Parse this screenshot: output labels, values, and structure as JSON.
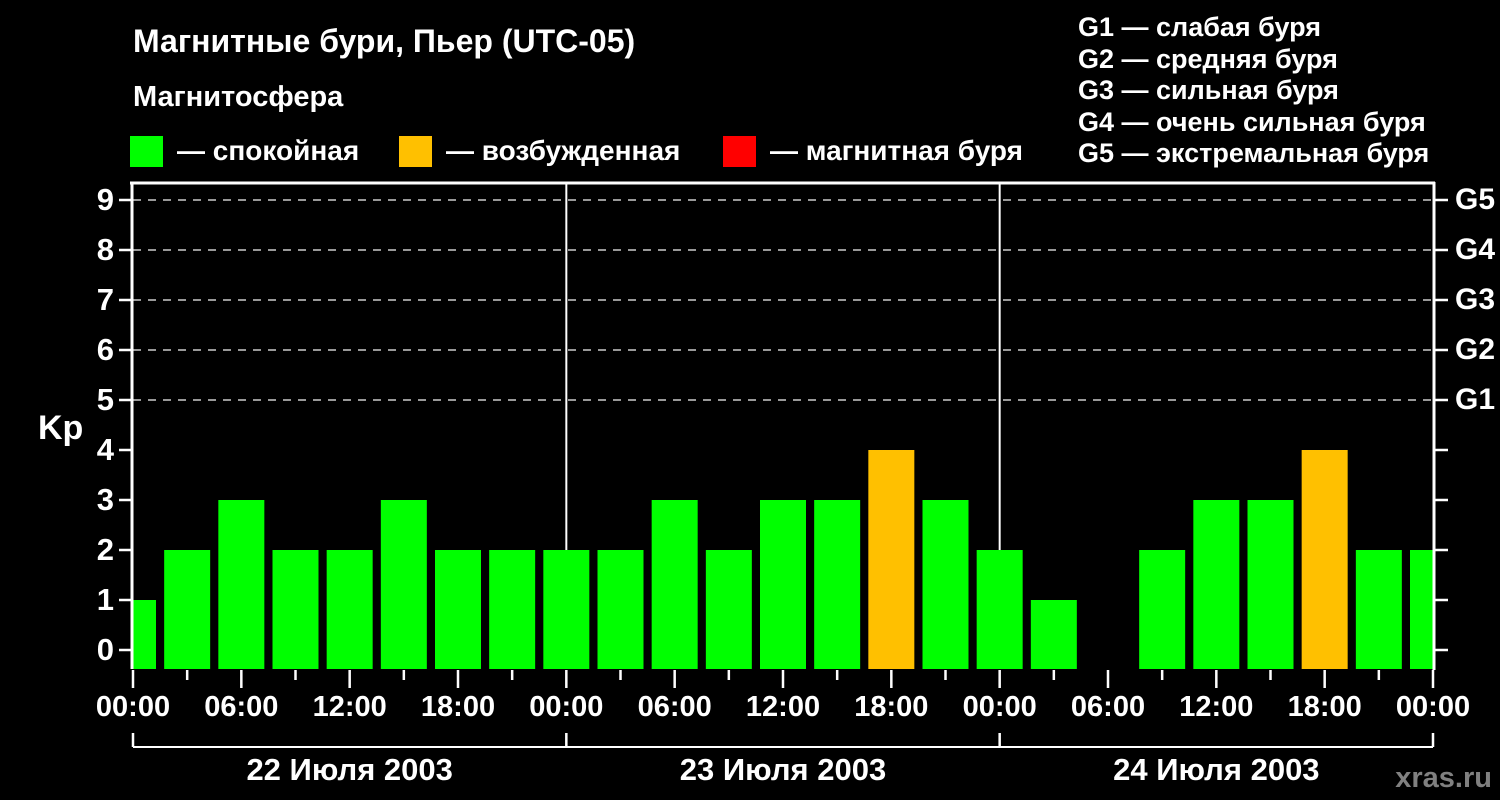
{
  "title": "Магнитные бури, Пьер (UTC-05)",
  "subtitle": "Магнитосфера",
  "legend": [
    {
      "key": "quiet",
      "color": "#00FF00",
      "label": "— спокойная"
    },
    {
      "key": "excited",
      "color": "#FFC000",
      "label": "— возбужденная"
    },
    {
      "key": "storm",
      "color": "#FF0000",
      "label": "— магнитная буря"
    }
  ],
  "storm_scale_legend": [
    "G1 — слабая буря",
    "G2 — средняя буря",
    "G3 — сильная буря",
    "G4 — очень сильная буря",
    "G5 — экстремальная буря"
  ],
  "watermark": "xras.ru",
  "chart_data": {
    "type": "bar",
    "ylabel": "Kp",
    "xlabel": "",
    "ylim": [
      0,
      9
    ],
    "y_ticks": [
      0,
      1,
      2,
      3,
      4,
      5,
      6,
      7,
      8,
      9
    ],
    "gridlines_at": [
      5,
      6,
      7,
      8,
      9
    ],
    "grid_on": true,
    "legend_position": "top",
    "right_axis_labels": {
      "5": "G1",
      "6": "G2",
      "7": "G3",
      "8": "G4",
      "9": "G5"
    },
    "x_hours_span": 72,
    "x_tick_step_hours": 3,
    "x_label_step_hours": 6,
    "x_labels": [
      "00:00",
      "06:00",
      "12:00",
      "18:00",
      "00:00",
      "06:00",
      "12:00",
      "18:00",
      "00:00",
      "06:00",
      "12:00",
      "18:00",
      "00:00"
    ],
    "day_boundaries_hours": [
      24,
      48
    ],
    "dates": [
      "22 Июля 2003",
      "23 Июля 2003",
      "24 Июля 2003"
    ],
    "bars": [
      {
        "hour": 0,
        "kp": 1,
        "state": "quiet"
      },
      {
        "hour": 3,
        "kp": 2,
        "state": "quiet"
      },
      {
        "hour": 6,
        "kp": 3,
        "state": "quiet"
      },
      {
        "hour": 9,
        "kp": 2,
        "state": "quiet"
      },
      {
        "hour": 12,
        "kp": 2,
        "state": "quiet"
      },
      {
        "hour": 15,
        "kp": 3,
        "state": "quiet"
      },
      {
        "hour": 18,
        "kp": 2,
        "state": "quiet"
      },
      {
        "hour": 21,
        "kp": 2,
        "state": "quiet"
      },
      {
        "hour": 24,
        "kp": 2,
        "state": "quiet"
      },
      {
        "hour": 27,
        "kp": 2,
        "state": "quiet"
      },
      {
        "hour": 30,
        "kp": 3,
        "state": "quiet"
      },
      {
        "hour": 33,
        "kp": 2,
        "state": "quiet"
      },
      {
        "hour": 36,
        "kp": 3,
        "state": "quiet"
      },
      {
        "hour": 39,
        "kp": 3,
        "state": "quiet"
      },
      {
        "hour": 42,
        "kp": 4,
        "state": "excited"
      },
      {
        "hour": 45,
        "kp": 3,
        "state": "quiet"
      },
      {
        "hour": 48,
        "kp": 2,
        "state": "quiet"
      },
      {
        "hour": 51,
        "kp": 1,
        "state": "quiet"
      },
      {
        "hour": 54,
        "kp": null,
        "state": "missing"
      },
      {
        "hour": 57,
        "kp": 2,
        "state": "quiet"
      },
      {
        "hour": 60,
        "kp": 3,
        "state": "quiet"
      },
      {
        "hour": 63,
        "kp": 3,
        "state": "quiet"
      },
      {
        "hour": 66,
        "kp": 4,
        "state": "excited"
      },
      {
        "hour": 69,
        "kp": 2,
        "state": "quiet"
      },
      {
        "hour": 72,
        "kp": 2,
        "state": "quiet"
      }
    ],
    "colors": {
      "quiet": "#00FF00",
      "excited": "#FFC000",
      "storm": "#FF0000",
      "grid": "#999999",
      "axis": "#FFFFFF",
      "background": "#000000",
      "watermark": "#808080"
    }
  }
}
